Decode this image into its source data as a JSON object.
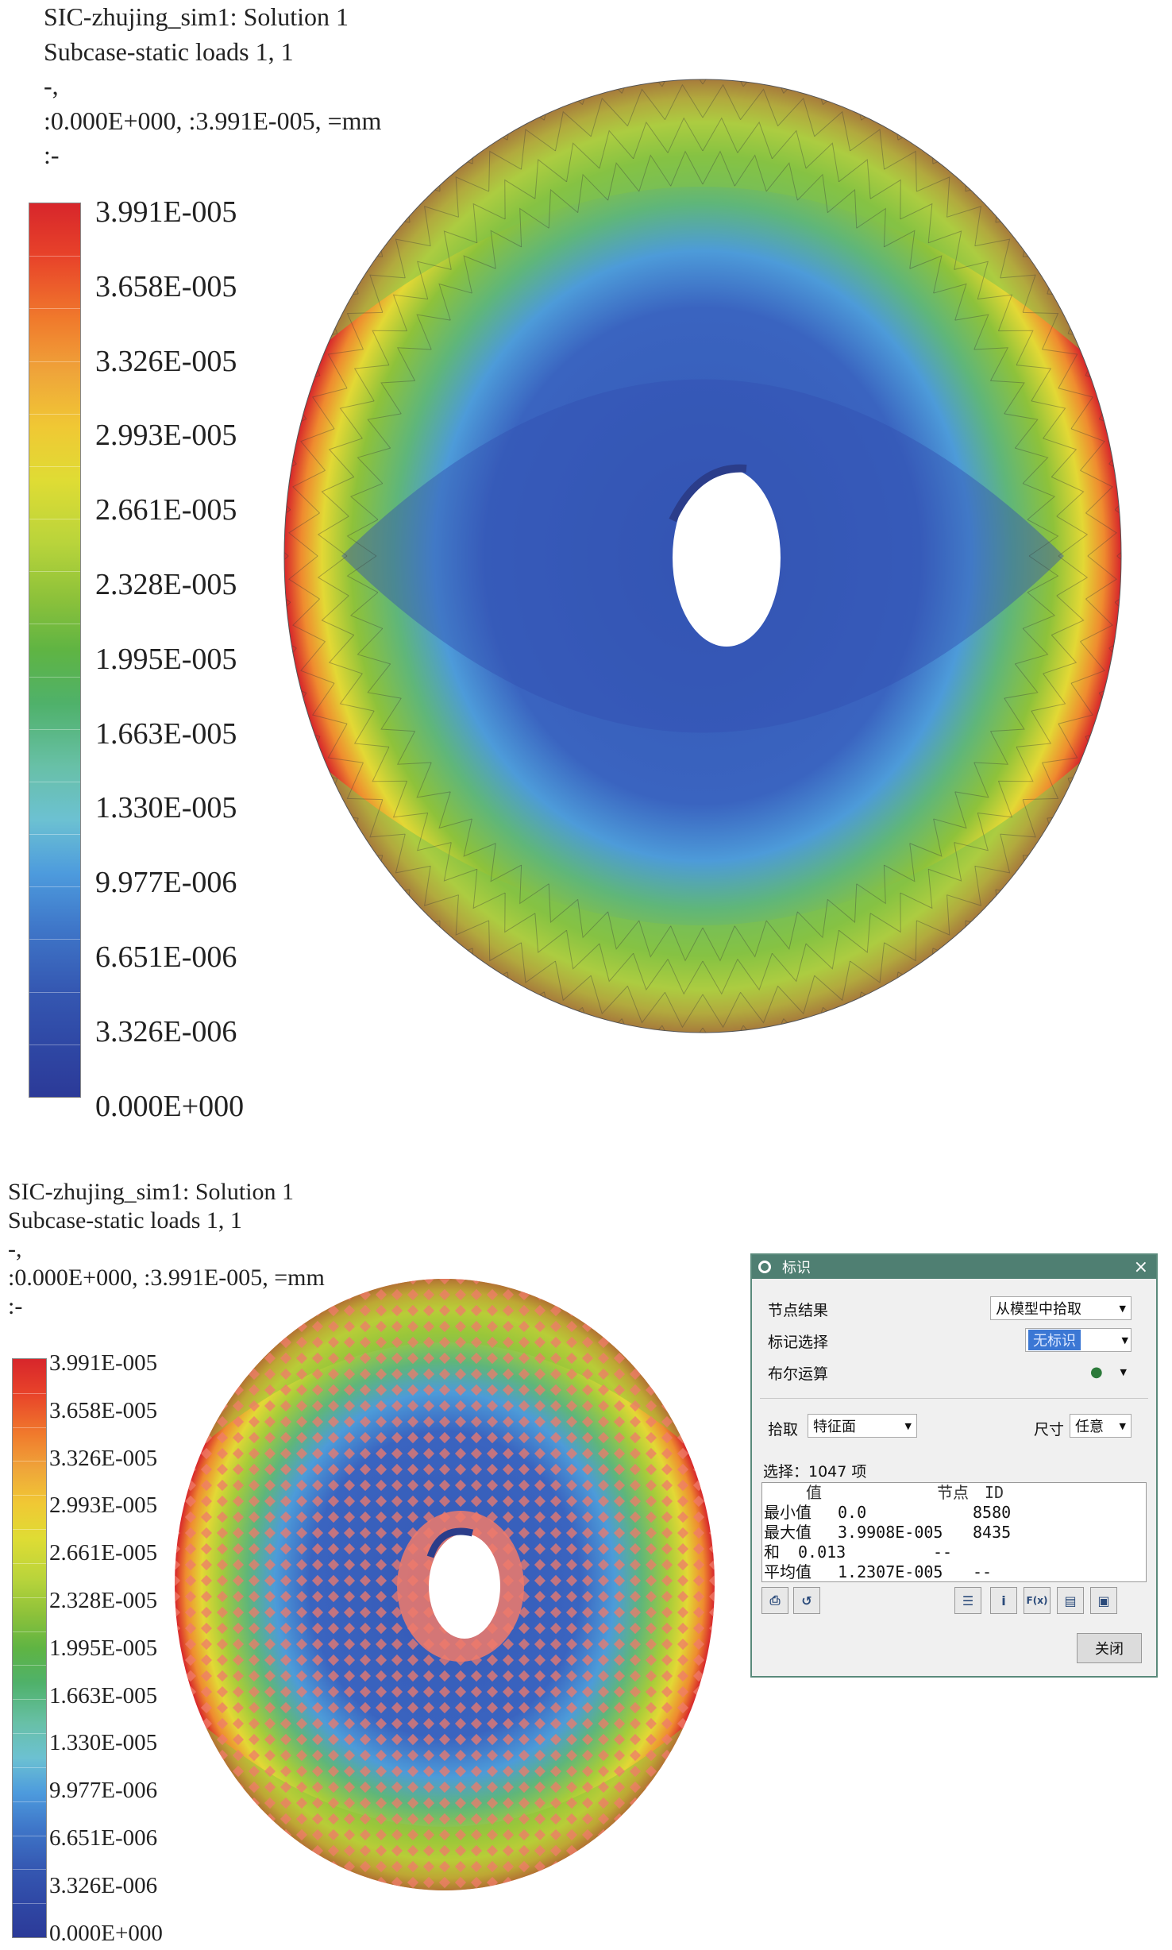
{
  "plot1": {
    "header": [
      "SIC-zhujing_sim1: Solution 1",
      "Subcase-static loads 1, 1",
      "-,",
      ":0.000E+000, :3.991E-005, =mm",
      ":-"
    ],
    "legend_ticks": [
      "3.991E-005",
      "3.658E-005",
      "3.326E-005",
      "2.993E-005",
      "2.661E-005",
      "2.328E-005",
      "1.995E-005",
      "1.663E-005",
      "1.330E-005",
      "9.977E-006",
      "6.651E-006",
      "3.326E-006",
      "0.000E+000"
    ]
  },
  "plot2": {
    "header": [
      "SIC-zhujing_sim1: Solution 1",
      "Subcase-static loads 1, 1",
      "-,",
      ":0.000E+000, :3.991E-005, =mm",
      ":-"
    ],
    "legend_ticks": [
      "3.991E-005",
      "3.658E-005",
      "3.326E-005",
      "2.993E-005",
      "2.661E-005",
      "2.328E-005",
      "1.995E-005",
      "1.663E-005",
      "1.330E-005",
      "9.977E-006",
      "6.651E-006",
      "3.326E-006",
      "0.000E+000"
    ]
  },
  "dialog": {
    "title": "标识",
    "node_result_label": "节点结果",
    "node_result_value": "从模型中拾取",
    "mark_select_label": "标记选择",
    "mark_select_value": "无标识",
    "bool_label": "布尔运算",
    "pick_label": "拾取",
    "pick_value": "特征面",
    "size_label": "尺寸",
    "size_value": "任意",
    "selection_text": "选择：1047 项",
    "col_value": "值",
    "col_node": "节点",
    "col_id": "ID",
    "rows": [
      {
        "label": "最小值",
        "value": "0.0",
        "node": "8580"
      },
      {
        "label": "最大值",
        "value": "3.9908E-005",
        "node": "8435"
      },
      {
        "label": "和",
        "value": "0.013",
        "node": "--"
      },
      {
        "label": "平均值",
        "value": "1.2307E-005",
        "node": "--"
      }
    ],
    "close_label": "关闭"
  }
}
